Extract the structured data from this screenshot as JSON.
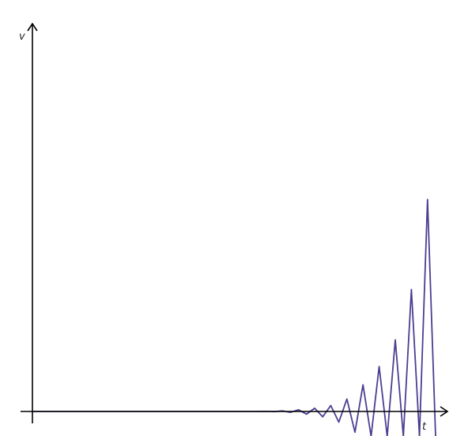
{
  "chart_data": {
    "type": "line",
    "title": "",
    "xlabel": "t",
    "ylabel": "v",
    "grid": false,
    "legend": "none",
    "series_color": "#4a3f91",
    "axis_color": "#000000",
    "xlim": [
      0,
      50
    ],
    "ylim": [
      -3,
      49
    ],
    "series": [
      {
        "x": [
          0,
          1,
          2,
          3,
          4,
          5,
          6,
          7,
          8,
          9,
          10,
          11,
          12,
          13,
          14,
          15,
          16,
          17,
          18,
          19,
          20,
          21,
          22,
          23,
          24,
          25,
          26,
          27,
          28,
          29,
          30,
          31,
          32,
          33,
          34,
          35,
          36,
          37,
          38,
          39,
          40,
          41,
          42,
          43,
          44,
          45,
          46,
          47,
          48,
          49,
          50
        ],
        "y": [
          0,
          0,
          0,
          0,
          0,
          0,
          0,
          0,
          0,
          0,
          0,
          0,
          0,
          0,
          0,
          0,
          0,
          0,
          0,
          0,
          0,
          0,
          0,
          0,
          0,
          0,
          0,
          0,
          0,
          0.02,
          -0.03,
          0.1,
          -0.15,
          0.3,
          -0.45,
          0.55,
          -0.9,
          1.0,
          -1.8,
          2.1,
          -3.5,
          4.5,
          -4.2,
          7.6,
          -4.2,
          12.1,
          -4.2,
          20.6,
          -4.2,
          35.8,
          -4.2
        ]
      }
    ]
  }
}
